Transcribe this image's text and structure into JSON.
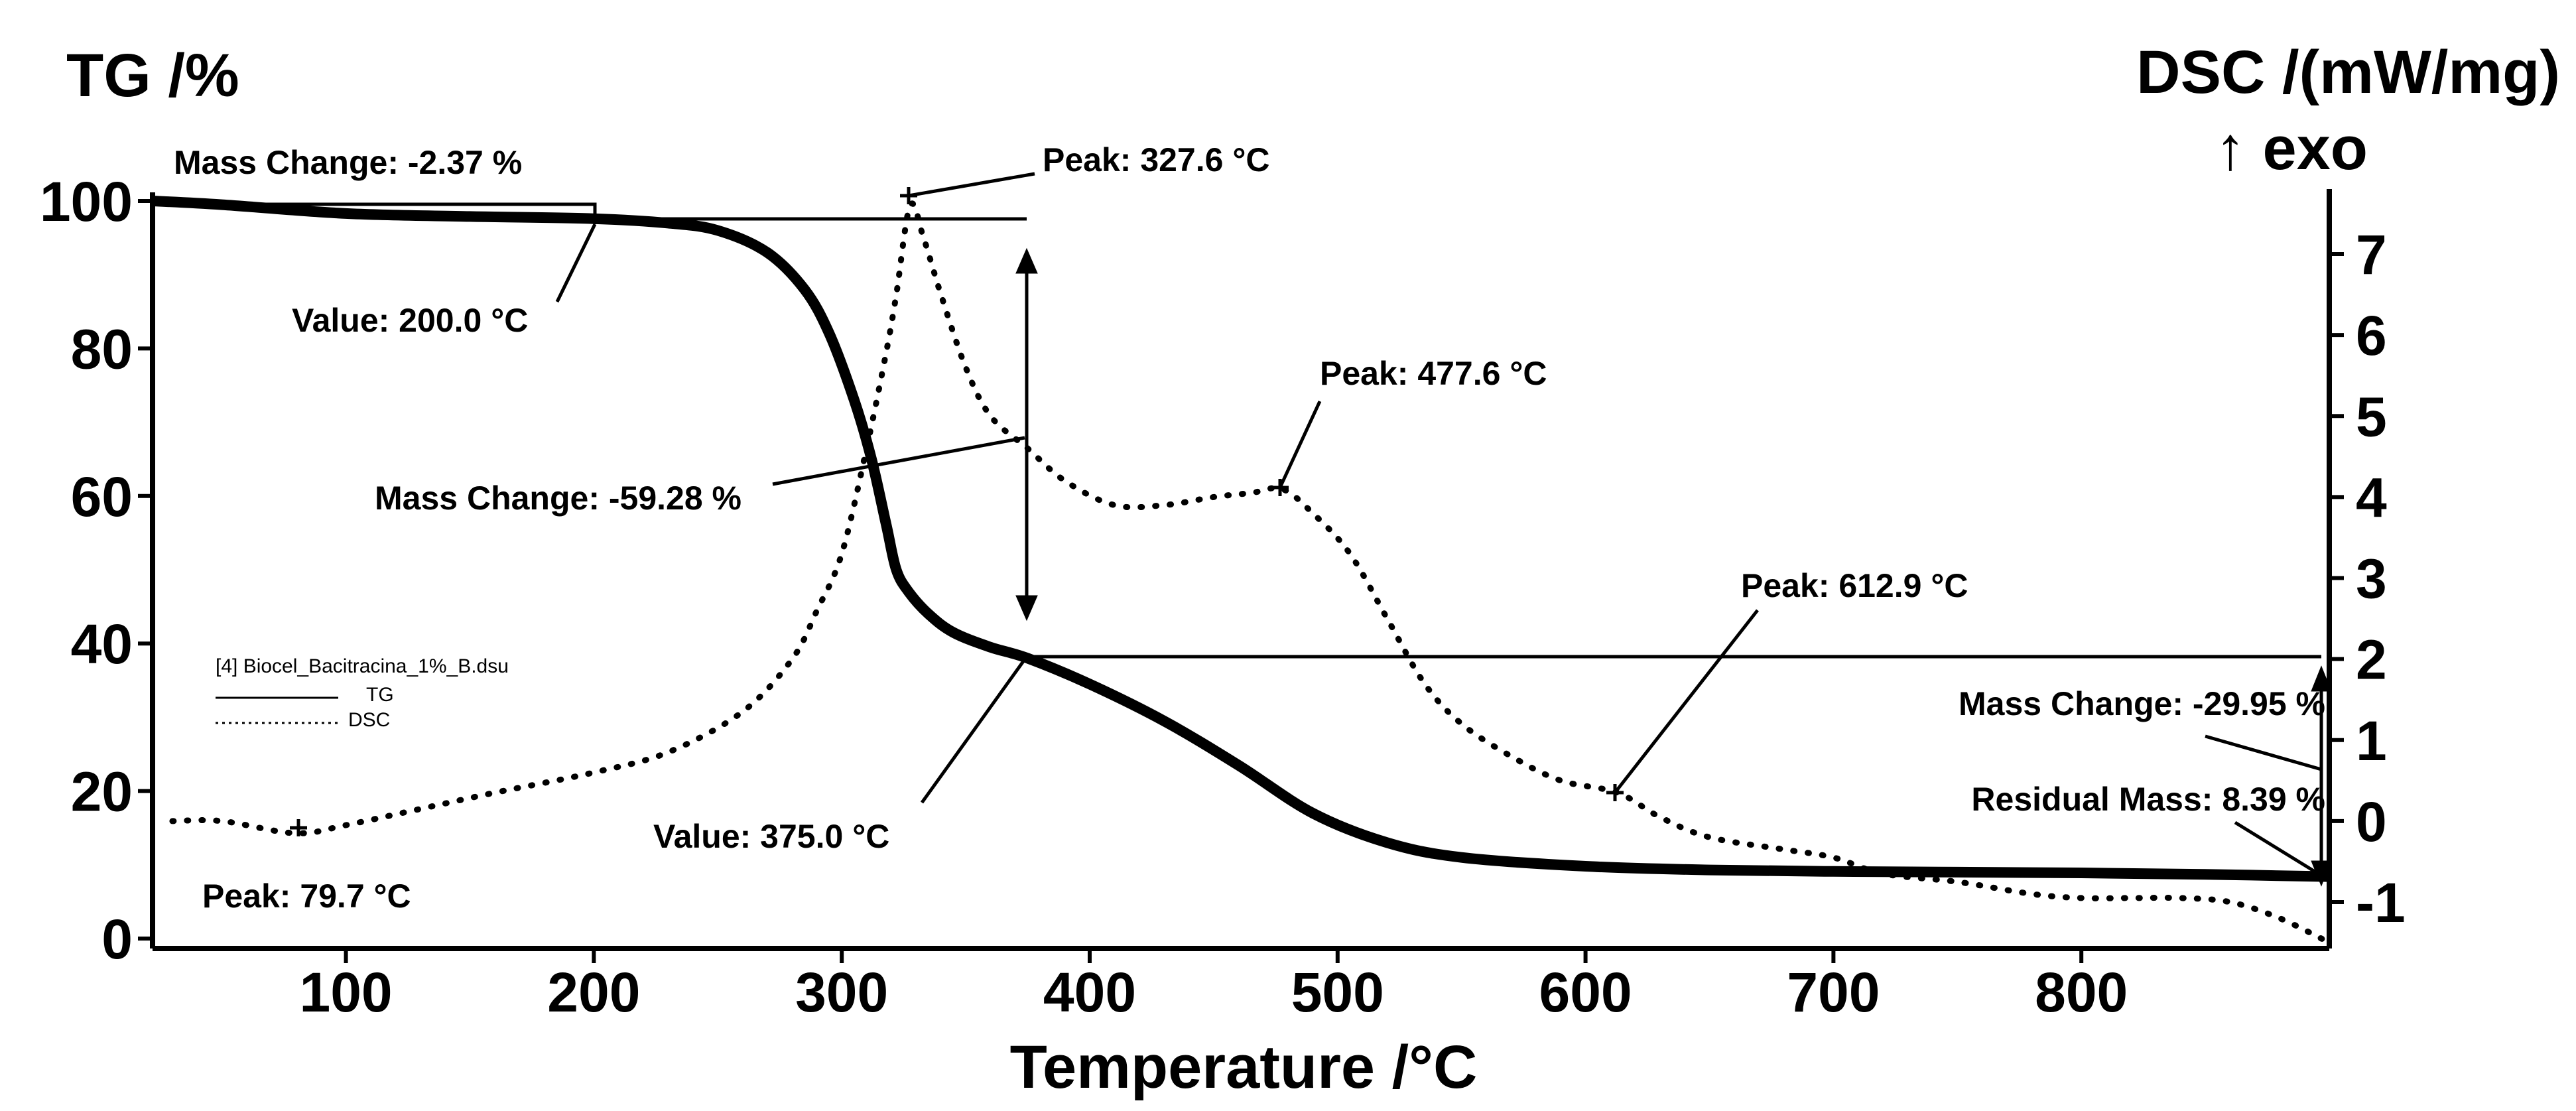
{
  "chart_data": {
    "type": "line",
    "xlabel": "Temperature /°C",
    "ylabel_left": "TG /%",
    "ylabel_right": "DSC /(mW/mg)",
    "ylabel_right_sub": "↑ exo",
    "xlim": [
      22,
      900
    ],
    "ylim_left": [
      0,
      101
    ],
    "ylim_right": [
      -1.5,
      7.8
    ],
    "x_ticks": [
      "100",
      "200",
      "300",
      "400",
      "500",
      "600",
      "700",
      "800"
    ],
    "y_left_ticks": [
      "0",
      "20",
      "40",
      "60",
      "80",
      "100"
    ],
    "y_right_ticks": [
      "-1",
      "0",
      "1",
      "2",
      "3",
      "4",
      "5",
      "6",
      "7"
    ],
    "legend": {
      "file": "[4] Biocel_Bacitracina_1%_B.dsu",
      "tg_label": "TG",
      "dsc_label": "DSC"
    },
    "series": [
      {
        "name": "TG",
        "axis": "left",
        "style": "solid",
        "x": [
          22,
          50,
          100,
          150,
          200,
          230,
          250,
          270,
          285,
          295,
          305,
          312,
          318,
          322,
          327,
          335,
          345,
          360,
          375,
          400,
          430,
          460,
          490,
          520,
          550,
          600,
          650,
          700,
          750,
          800,
          850,
          900
        ],
        "y": [
          100,
          99.5,
          98.3,
          97.9,
          97.6,
          97,
          96,
          93,
          88,
          82,
          73,
          65,
          56,
          50,
          47,
          44,
          41.5,
          39.5,
          38,
          34.5,
          29.5,
          23.5,
          17,
          13,
          11,
          9.8,
          9.3,
          9.1,
          9,
          8.9,
          8.7,
          8.4
        ]
      },
      {
        "name": "DSC",
        "axis": "right",
        "style": "dotted",
        "x": [
          30,
          50,
          79.7,
          100,
          130,
          160,
          200,
          230,
          260,
          280,
          290,
          300,
          310,
          318,
          322,
          327.6,
          333,
          340,
          350,
          360,
          375,
          390,
          410,
          430,
          450,
          465,
          477.6,
          490,
          505,
          520,
          535,
          550,
          570,
          590,
          612.9,
          630,
          650,
          680,
          700,
          720,
          750,
          780,
          800,
          820,
          840,
          860,
          880,
          900
        ],
        "y": [
          0,
          0,
          -0.15,
          -0.05,
          0.15,
          0.35,
          0.6,
          0.85,
          1.35,
          2.0,
          2.6,
          3.3,
          4.6,
          5.8,
          6.5,
          7.6,
          7.2,
          6.5,
          5.6,
          5.0,
          4.6,
          4.2,
          3.9,
          3.9,
          4.0,
          4.05,
          4.1,
          3.8,
          3.3,
          2.5,
          1.7,
          1.2,
          0.8,
          0.5,
          0.35,
          0.05,
          -0.2,
          -0.35,
          -0.45,
          -0.65,
          -0.75,
          -0.9,
          -0.95,
          -0.95,
          -0.95,
          -1.0,
          -1.2,
          -1.5
        ]
      }
    ],
    "annotations": {
      "mass_change_1": "Mass Change: -2.37 %",
      "value_200": "Value: 200.0 °C",
      "peak_327": "Peak: 327.6 °C",
      "mass_change_2": "Mass Change: -59.28 %",
      "peak_477": "Peak: 477.6 °C",
      "peak_612": "Peak: 612.9 °C",
      "value_375": "Value: 375.0 °C",
      "peak_79": "Peak: 79.7 °C",
      "mass_change_3": "Mass Change: -29.95 %",
      "residual": "Residual Mass: 8.39 %"
    },
    "grid": false
  }
}
